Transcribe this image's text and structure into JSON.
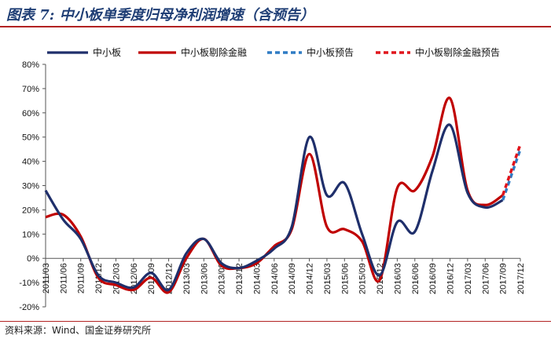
{
  "title": "图表 7: 中小板单季度归母净利润增速（含预告）",
  "source": "资料来源：Wind、国金证券研究所",
  "colors": {
    "navy": "#1f2f6b",
    "red": "#c00000",
    "blue_dash": "#2e7bc4",
    "red_dash": "#e0141c",
    "rule": "#b22222"
  },
  "chart_data": {
    "type": "line",
    "title": "",
    "xlabel": "",
    "ylabel": "",
    "ylim": [
      -20,
      80
    ],
    "yticks": [
      "80%",
      "70%",
      "60%",
      "50%",
      "40%",
      "30%",
      "20%",
      "10%",
      "0%",
      "-10%",
      "-20%"
    ],
    "legend_position": "top",
    "grid": false,
    "x_tick_labels": [
      "2011/03",
      "2011/06",
      "2011/09",
      "2011/12",
      "2012/03",
      "2012/06",
      "2012/09",
      "2012/12",
      "2013/03",
      "2013/06",
      "2013/09",
      "2013/12",
      "2014/03",
      "2014/06",
      "2014/09",
      "2014/12",
      "2015/03",
      "2015/06",
      "2015/09",
      "2015/12",
      "2016/03",
      "2016/06",
      "2016/09",
      "2016/12",
      "2017/03",
      "2017/06",
      "2017/09",
      "2017/12"
    ],
    "series": [
      {
        "name": "中小板",
        "style": "solid",
        "values": [
          28,
          16,
          8,
          -7,
          -10,
          -12,
          -6,
          -13,
          2,
          8,
          -2,
          -4,
          -1,
          4,
          13,
          50,
          26,
          31,
          10,
          -7,
          15,
          11,
          36,
          55,
          27,
          21,
          24,
          null
        ]
      },
      {
        "name": "中小板剔除金融",
        "style": "solid",
        "values": [
          17,
          18,
          9,
          -8,
          -11,
          -13,
          -8,
          -14,
          0,
          8,
          -3,
          -4,
          -2,
          5,
          12,
          43,
          13,
          12,
          7,
          -9,
          29,
          28,
          42,
          66,
          28,
          22,
          26,
          null
        ]
      },
      {
        "name": "中小板预告",
        "style": "dashed",
        "values": [
          null,
          null,
          null,
          null,
          null,
          null,
          null,
          null,
          null,
          null,
          null,
          null,
          null,
          null,
          null,
          null,
          null,
          null,
          null,
          null,
          null,
          null,
          null,
          null,
          null,
          null,
          24,
          45
        ]
      },
      {
        "name": "中小板剔除金融预告",
        "style": "dashed",
        "values": [
          null,
          null,
          null,
          null,
          null,
          null,
          null,
          null,
          null,
          null,
          null,
          null,
          null,
          null,
          null,
          null,
          null,
          null,
          null,
          null,
          null,
          null,
          null,
          null,
          null,
          null,
          26,
          47
        ]
      }
    ]
  }
}
